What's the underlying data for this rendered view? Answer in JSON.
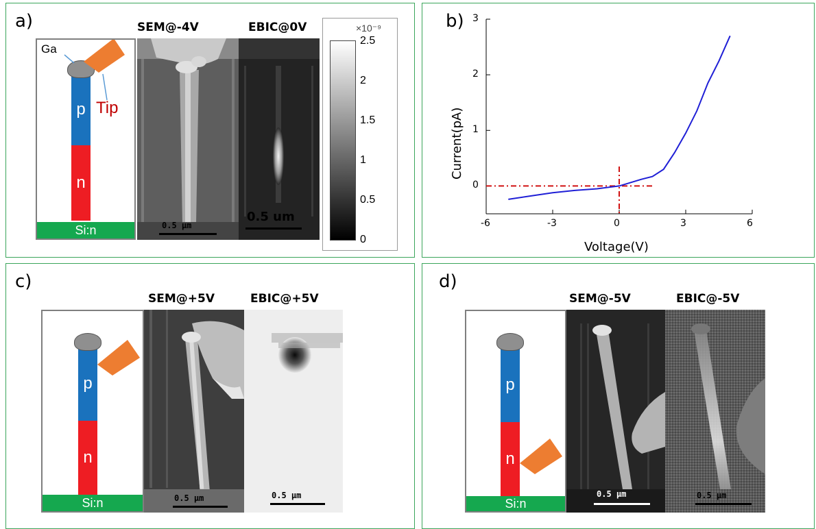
{
  "panels": {
    "a": {
      "label": "a)",
      "sem_title": "SEM@-4V",
      "ebic_title": "EBIC@0V",
      "ga_label": "Ga",
      "tip_label": "Tip",
      "p_label": "p",
      "n_label": "n",
      "substrate_label": "Si:n",
      "sem_scale": "0.5 μm",
      "ebic_scale": "0.5 um",
      "colorbar": {
        "exponent": "×10⁻⁹",
        "ticks": [
          "2.5",
          "2",
          "1.5",
          "1",
          "0.5",
          "0"
        ]
      }
    },
    "b": {
      "label": "b)"
    },
    "c": {
      "label": "c)",
      "sem_title": "SEM@+5V",
      "ebic_title": "EBIC@+5V",
      "p_label": "p",
      "n_label": "n",
      "substrate_label": "Si:n",
      "sem_scale": "0.5 μm",
      "ebic_scale": "0.5 μm"
    },
    "d": {
      "label": "d)",
      "sem_title": "SEM@-5V",
      "ebic_title": "EBIC@-5V",
      "p_label": "p",
      "n_label": "n",
      "substrate_label": "Si:n",
      "sem_scale": "0.5 μm",
      "ebic_scale": "0.5 μm"
    }
  },
  "colors": {
    "p_region": "#1a72bd",
    "n_region": "#ee1d23",
    "substrate": "#15a84f",
    "tip": "#ed7d31",
    "iv_curve": "#1f1fd6",
    "ref_lines": "#d01010",
    "tip_text": "#c00000"
  },
  "chart_data": {
    "type": "line",
    "title": "",
    "xlabel": "Voltage(V)",
    "ylabel": "Current(pA)",
    "xlim": [
      -6,
      6
    ],
    "ylim": [
      -0.5,
      3
    ],
    "xticks": [
      "-6",
      "-3",
      "0",
      "3",
      "6"
    ],
    "yticks": [
      "0",
      "1",
      "2",
      "3"
    ],
    "x": [
      -5,
      -4,
      -3,
      -2,
      -1,
      0,
      0.5,
      1,
      1.5,
      2,
      2.5,
      3,
      3.5,
      4,
      4.5,
      5
    ],
    "y": [
      -0.24,
      -0.18,
      -0.12,
      -0.08,
      -0.05,
      0.0,
      0.06,
      0.12,
      0.17,
      0.3,
      0.6,
      0.95,
      1.35,
      1.85,
      2.25,
      2.7
    ],
    "reference_lines": {
      "x": 0,
      "y": 0,
      "style": "dash-dot"
    }
  }
}
